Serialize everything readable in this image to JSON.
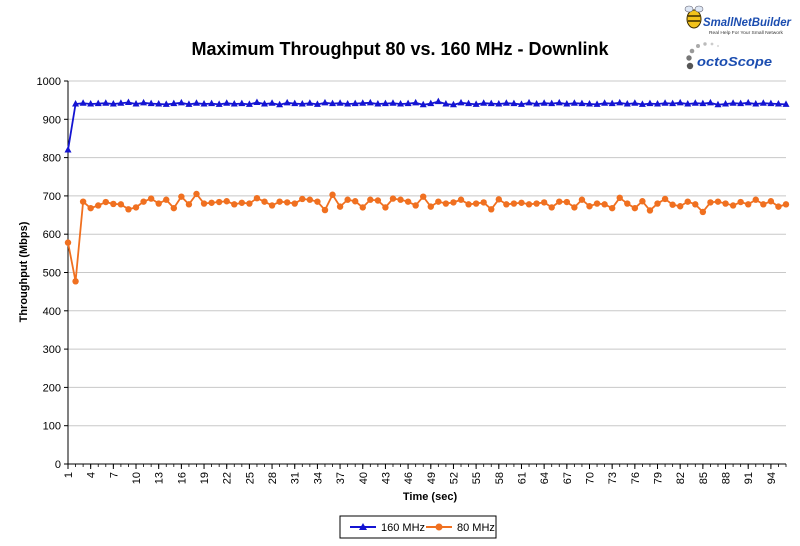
{
  "logos": {
    "snb_name": "SmallNetBuilder",
    "snb_tagline": "Real Help For Your Small Network",
    "octo_name": "octoScope"
  },
  "colors": {
    "series_160": "#1414d2",
    "series_80": "#f07020",
    "grid": "#c8c8c8",
    "axis": "#000000"
  },
  "chart_data": {
    "type": "line",
    "title": "Maximum Throughput 80 vs. 160 MHz - Downlink",
    "xlabel": "Time (sec)",
    "ylabel": "Throughput (Mbps)",
    "ylim": [
      0,
      1000
    ],
    "yticks": [
      0,
      100,
      200,
      300,
      400,
      500,
      600,
      700,
      800,
      900,
      1000
    ],
    "xlim": [
      1,
      96
    ],
    "xticks": [
      1,
      4,
      7,
      10,
      13,
      16,
      19,
      22,
      25,
      28,
      31,
      34,
      37,
      40,
      43,
      46,
      49,
      52,
      55,
      58,
      61,
      64,
      67,
      70,
      73,
      76,
      79,
      82,
      85,
      88,
      91,
      94
    ],
    "grid": true,
    "legend_position": "bottom",
    "series": [
      {
        "name": "160 MHz",
        "marker": "triangle",
        "values": [
          820,
          940,
          942,
          940,
          941,
          942,
          940,
          942,
          944,
          940,
          943,
          941,
          940,
          939,
          941,
          943,
          939,
          942,
          940,
          941,
          939,
          942,
          940,
          941,
          939,
          944,
          940,
          942,
          938,
          943,
          941,
          940,
          942,
          939,
          943,
          941,
          942,
          940,
          941,
          942,
          943,
          940,
          941,
          942,
          940,
          941,
          943,
          938,
          941,
          946,
          940,
          938,
          943,
          941,
          939,
          942,
          941,
          940,
          942,
          941,
          939,
          943,
          940,
          942,
          941,
          943,
          940,
          942,
          941,
          940,
          939,
          942,
          941,
          943,
          940,
          942,
          939,
          941,
          940,
          942,
          941,
          943,
          940,
          942,
          941,
          943,
          938,
          940,
          942,
          941,
          943,
          940,
          942,
          941,
          940,
          939
        ]
      },
      {
        "name": "80 MHz",
        "marker": "circle",
        "values": [
          578,
          477,
          685,
          668,
          675,
          684,
          679,
          678,
          665,
          670,
          685,
          693,
          680,
          690,
          668,
          698,
          678,
          705,
          680,
          682,
          684,
          686,
          678,
          682,
          680,
          694,
          685,
          675,
          685,
          683,
          680,
          692,
          690,
          685,
          663,
          703,
          672,
          690,
          686,
          670,
          690,
          688,
          670,
          693,
          690,
          685,
          675,
          698,
          672,
          685,
          680,
          683,
          690,
          678,
          680,
          683,
          665,
          691,
          678,
          680,
          682,
          678,
          680,
          683,
          670,
          685,
          684,
          670,
          690,
          673,
          680,
          678,
          668,
          695,
          680,
          668,
          686,
          662,
          680,
          692,
          677,
          673,
          685,
          678,
          658,
          683,
          685,
          680,
          675,
          684,
          678,
          690,
          678,
          686,
          672,
          678
        ]
      }
    ]
  }
}
